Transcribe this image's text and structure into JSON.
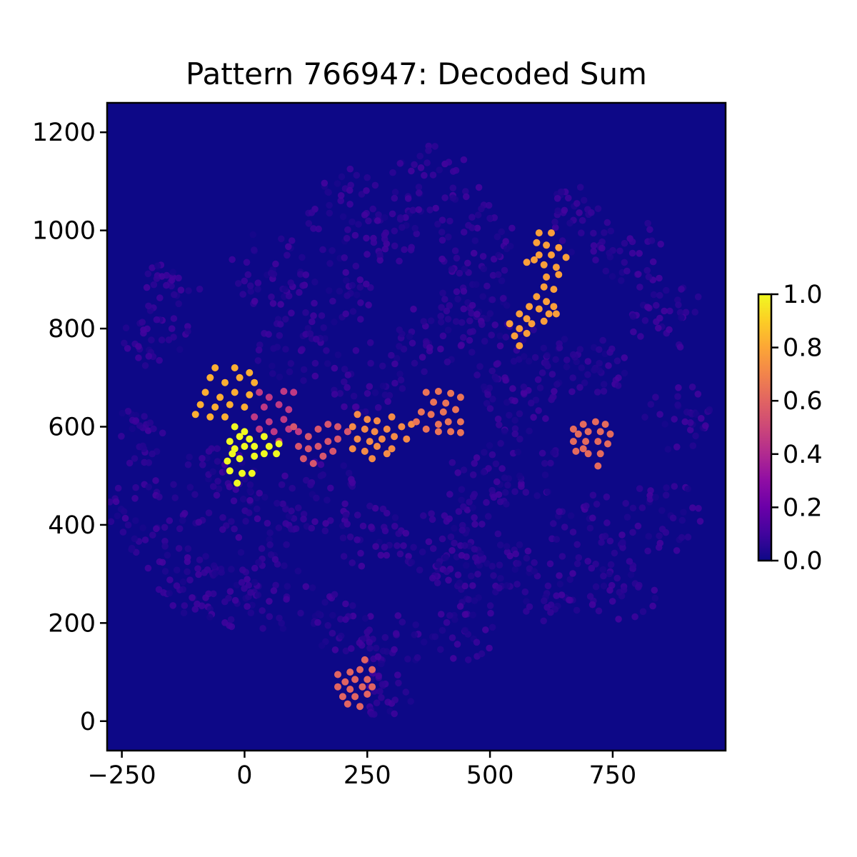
{
  "chart_data": {
    "type": "scatter",
    "title": "Pattern 766947: Decoded Sum",
    "xlabel": "",
    "ylabel": "",
    "xlim": [
      -280,
      980
    ],
    "ylim": [
      -60,
      1260
    ],
    "x_ticks": [
      -250,
      0,
      250,
      500,
      750
    ],
    "x_tick_labels": [
      "−250",
      "0",
      "250",
      "500",
      "750"
    ],
    "y_ticks": [
      0,
      200,
      400,
      600,
      800,
      1000,
      1200
    ],
    "y_tick_labels": [
      "0",
      "200",
      "400",
      "600",
      "800",
      "1000",
      "1200"
    ],
    "grid": false,
    "background_color": "#0d0887",
    "colormap": "plasma",
    "colorbar": {
      "range": [
        0,
        1
      ],
      "ticks": [
        0.0,
        0.2,
        0.4,
        0.6,
        0.8,
        1.0
      ],
      "tick_labels": [
        "0.0",
        "0.2",
        "0.4",
        "0.6",
        "0.8",
        "1.0"
      ]
    },
    "bright_points": [
      {
        "x": -60,
        "y": 720,
        "v": 0.82
      },
      {
        "x": -20,
        "y": 720,
        "v": 0.82
      },
      {
        "x": 10,
        "y": 710,
        "v": 0.82
      },
      {
        "x": -70,
        "y": 700,
        "v": 0.82
      },
      {
        "x": -40,
        "y": 690,
        "v": 0.82
      },
      {
        "x": -10,
        "y": 700,
        "v": 0.82
      },
      {
        "x": 20,
        "y": 690,
        "v": 0.82
      },
      {
        "x": -80,
        "y": 670,
        "v": 0.82
      },
      {
        "x": -50,
        "y": 660,
        "v": 0.82
      },
      {
        "x": -20,
        "y": 670,
        "v": 0.82
      },
      {
        "x": 10,
        "y": 665,
        "v": 0.82
      },
      {
        "x": -90,
        "y": 645,
        "v": 0.82
      },
      {
        "x": -60,
        "y": 640,
        "v": 0.82
      },
      {
        "x": -30,
        "y": 645,
        "v": 0.82
      },
      {
        "x": 0,
        "y": 640,
        "v": 0.82
      },
      {
        "x": -100,
        "y": 625,
        "v": 0.82
      },
      {
        "x": -70,
        "y": 620,
        "v": 0.82
      },
      {
        "x": -40,
        "y": 620,
        "v": 0.82
      },
      {
        "x": 30,
        "y": 670,
        "v": 0.45
      },
      {
        "x": 50,
        "y": 660,
        "v": 0.45
      },
      {
        "x": 80,
        "y": 672,
        "v": 0.45
      },
      {
        "x": 100,
        "y": 670,
        "v": 0.45
      },
      {
        "x": 40,
        "y": 640,
        "v": 0.45
      },
      {
        "x": 70,
        "y": 645,
        "v": 0.45
      },
      {
        "x": 90,
        "y": 635,
        "v": 0.45
      },
      {
        "x": 20,
        "y": 620,
        "v": 0.45
      },
      {
        "x": 50,
        "y": 610,
        "v": 0.45
      },
      {
        "x": 80,
        "y": 615,
        "v": 0.45
      },
      {
        "x": 30,
        "y": 595,
        "v": 0.45
      },
      {
        "x": 60,
        "y": 590,
        "v": 0.45
      },
      {
        "x": 90,
        "y": 595,
        "v": 0.45
      },
      {
        "x": 110,
        "y": 590,
        "v": 0.45
      },
      {
        "x": 70,
        "y": 570,
        "v": 0.45
      },
      {
        "x": -20,
        "y": 600,
        "v": 1.0
      },
      {
        "x": -10,
        "y": 580,
        "v": 1.0
      },
      {
        "x": 0,
        "y": 590,
        "v": 1.0
      },
      {
        "x": -30,
        "y": 570,
        "v": 1.0
      },
      {
        "x": 10,
        "y": 575,
        "v": 1.0
      },
      {
        "x": 40,
        "y": 580,
        "v": 1.0
      },
      {
        "x": -20,
        "y": 555,
        "v": 1.0
      },
      {
        "x": 0,
        "y": 560,
        "v": 1.0
      },
      {
        "x": 20,
        "y": 560,
        "v": 1.0
      },
      {
        "x": 50,
        "y": 560,
        "v": 1.0
      },
      {
        "x": 70,
        "y": 565,
        "v": 1.0
      },
      {
        "x": -35,
        "y": 530,
        "v": 1.0
      },
      {
        "x": -10,
        "y": 535,
        "v": 1.0
      },
      {
        "x": 20,
        "y": 540,
        "v": 1.0
      },
      {
        "x": 40,
        "y": 545,
        "v": 1.0
      },
      {
        "x": 65,
        "y": 545,
        "v": 1.0
      },
      {
        "x": -30,
        "y": 510,
        "v": 1.0
      },
      {
        "x": -5,
        "y": 505,
        "v": 1.0
      },
      {
        "x": 15,
        "y": 505,
        "v": 1.0
      },
      {
        "x": -15,
        "y": 485,
        "v": 1.0
      },
      {
        "x": -25,
        "y": 545,
        "v": 1.0
      },
      {
        "x": 110,
        "y": 560,
        "v": 0.55
      },
      {
        "x": 130,
        "y": 580,
        "v": 0.55
      },
      {
        "x": 150,
        "y": 595,
        "v": 0.55
      },
      {
        "x": 170,
        "y": 605,
        "v": 0.55
      },
      {
        "x": 190,
        "y": 600,
        "v": 0.55
      },
      {
        "x": 130,
        "y": 555,
        "v": 0.55
      },
      {
        "x": 150,
        "y": 560,
        "v": 0.55
      },
      {
        "x": 170,
        "y": 570,
        "v": 0.55
      },
      {
        "x": 190,
        "y": 575,
        "v": 0.55
      },
      {
        "x": 120,
        "y": 535,
        "v": 0.55
      },
      {
        "x": 140,
        "y": 525,
        "v": 0.55
      },
      {
        "x": 160,
        "y": 540,
        "v": 0.55
      },
      {
        "x": 180,
        "y": 550,
        "v": 0.55
      },
      {
        "x": 210,
        "y": 590,
        "v": 0.55
      },
      {
        "x": 100,
        "y": 600,
        "v": 0.55
      },
      {
        "x": 230,
        "y": 625,
        "v": 0.72
      },
      {
        "x": 250,
        "y": 615,
        "v": 0.72
      },
      {
        "x": 270,
        "y": 612,
        "v": 0.72
      },
      {
        "x": 300,
        "y": 620,
        "v": 0.72
      },
      {
        "x": 220,
        "y": 600,
        "v": 0.72
      },
      {
        "x": 245,
        "y": 595,
        "v": 0.72
      },
      {
        "x": 265,
        "y": 590,
        "v": 0.72
      },
      {
        "x": 290,
        "y": 595,
        "v": 0.72
      },
      {
        "x": 320,
        "y": 600,
        "v": 0.72
      },
      {
        "x": 340,
        "y": 605,
        "v": 0.72
      },
      {
        "x": 230,
        "y": 575,
        "v": 0.72
      },
      {
        "x": 255,
        "y": 570,
        "v": 0.72
      },
      {
        "x": 280,
        "y": 575,
        "v": 0.72
      },
      {
        "x": 305,
        "y": 580,
        "v": 0.72
      },
      {
        "x": 330,
        "y": 575,
        "v": 0.72
      },
      {
        "x": 220,
        "y": 555,
        "v": 0.72
      },
      {
        "x": 245,
        "y": 550,
        "v": 0.72
      },
      {
        "x": 270,
        "y": 560,
        "v": 0.72
      },
      {
        "x": 300,
        "y": 555,
        "v": 0.72
      },
      {
        "x": 260,
        "y": 535,
        "v": 0.72
      },
      {
        "x": 290,
        "y": 545,
        "v": 0.72
      },
      {
        "x": 370,
        "y": 670,
        "v": 0.65
      },
      {
        "x": 395,
        "y": 672,
        "v": 0.65
      },
      {
        "x": 420,
        "y": 668,
        "v": 0.65
      },
      {
        "x": 440,
        "y": 660,
        "v": 0.65
      },
      {
        "x": 385,
        "y": 650,
        "v": 0.65
      },
      {
        "x": 410,
        "y": 648,
        "v": 0.65
      },
      {
        "x": 360,
        "y": 630,
        "v": 0.65
      },
      {
        "x": 380,
        "y": 625,
        "v": 0.65
      },
      {
        "x": 405,
        "y": 630,
        "v": 0.65
      },
      {
        "x": 430,
        "y": 635,
        "v": 0.65
      },
      {
        "x": 440,
        "y": 610,
        "v": 0.65
      },
      {
        "x": 395,
        "y": 605,
        "v": 0.65
      },
      {
        "x": 415,
        "y": 610,
        "v": 0.65
      },
      {
        "x": 370,
        "y": 595,
        "v": 0.65
      },
      {
        "x": 395,
        "y": 590,
        "v": 0.65
      },
      {
        "x": 420,
        "y": 590,
        "v": 0.65
      },
      {
        "x": 440,
        "y": 588,
        "v": 0.65
      },
      {
        "x": 350,
        "y": 610,
        "v": 0.65
      },
      {
        "x": 600,
        "y": 995,
        "v": 0.78
      },
      {
        "x": 625,
        "y": 995,
        "v": 0.78
      },
      {
        "x": 595,
        "y": 975,
        "v": 0.78
      },
      {
        "x": 615,
        "y": 970,
        "v": 0.78
      },
      {
        "x": 640,
        "y": 965,
        "v": 0.78
      },
      {
        "x": 600,
        "y": 950,
        "v": 0.78
      },
      {
        "x": 625,
        "y": 950,
        "v": 0.78
      },
      {
        "x": 655,
        "y": 945,
        "v": 0.78
      },
      {
        "x": 575,
        "y": 935,
        "v": 0.78
      },
      {
        "x": 590,
        "y": 940,
        "v": 0.78
      },
      {
        "x": 610,
        "y": 930,
        "v": 0.78
      },
      {
        "x": 635,
        "y": 925,
        "v": 0.78
      },
      {
        "x": 615,
        "y": 905,
        "v": 0.78
      },
      {
        "x": 640,
        "y": 910,
        "v": 0.78
      },
      {
        "x": 610,
        "y": 885,
        "v": 0.78
      },
      {
        "x": 630,
        "y": 880,
        "v": 0.78
      },
      {
        "x": 595,
        "y": 865,
        "v": 0.78
      },
      {
        "x": 615,
        "y": 855,
        "v": 0.78
      },
      {
        "x": 580,
        "y": 845,
        "v": 0.78
      },
      {
        "x": 600,
        "y": 840,
        "v": 0.78
      },
      {
        "x": 630,
        "y": 845,
        "v": 0.78
      },
      {
        "x": 560,
        "y": 830,
        "v": 0.78
      },
      {
        "x": 575,
        "y": 820,
        "v": 0.78
      },
      {
        "x": 620,
        "y": 830,
        "v": 0.78
      },
      {
        "x": 540,
        "y": 810,
        "v": 0.78
      },
      {
        "x": 560,
        "y": 800,
        "v": 0.78
      },
      {
        "x": 585,
        "y": 810,
        "v": 0.78
      },
      {
        "x": 610,
        "y": 815,
        "v": 0.78
      },
      {
        "x": 550,
        "y": 785,
        "v": 0.78
      },
      {
        "x": 575,
        "y": 790,
        "v": 0.78
      },
      {
        "x": 560,
        "y": 765,
        "v": 0.78
      },
      {
        "x": 635,
        "y": 830,
        "v": 0.78
      },
      {
        "x": 670,
        "y": 595,
        "v": 0.62
      },
      {
        "x": 690,
        "y": 605,
        "v": 0.62
      },
      {
        "x": 715,
        "y": 610,
        "v": 0.62
      },
      {
        "x": 735,
        "y": 605,
        "v": 0.62
      },
      {
        "x": 680,
        "y": 585,
        "v": 0.62
      },
      {
        "x": 700,
        "y": 590,
        "v": 0.62
      },
      {
        "x": 725,
        "y": 590,
        "v": 0.62
      },
      {
        "x": 745,
        "y": 585,
        "v": 0.62
      },
      {
        "x": 670,
        "y": 570,
        "v": 0.62
      },
      {
        "x": 695,
        "y": 570,
        "v": 0.62
      },
      {
        "x": 720,
        "y": 570,
        "v": 0.62
      },
      {
        "x": 740,
        "y": 565,
        "v": 0.62
      },
      {
        "x": 675,
        "y": 550,
        "v": 0.62
      },
      {
        "x": 700,
        "y": 545,
        "v": 0.62
      },
      {
        "x": 725,
        "y": 545,
        "v": 0.62
      },
      {
        "x": 690,
        "y": 555,
        "v": 0.62
      },
      {
        "x": 720,
        "y": 520,
        "v": 0.62
      },
      {
        "x": 190,
        "y": 95,
        "v": 0.6
      },
      {
        "x": 215,
        "y": 100,
        "v": 0.6
      },
      {
        "x": 235,
        "y": 105,
        "v": 0.6
      },
      {
        "x": 260,
        "y": 105,
        "v": 0.6
      },
      {
        "x": 205,
        "y": 80,
        "v": 0.6
      },
      {
        "x": 225,
        "y": 85,
        "v": 0.6
      },
      {
        "x": 250,
        "y": 85,
        "v": 0.6
      },
      {
        "x": 190,
        "y": 70,
        "v": 0.6
      },
      {
        "x": 215,
        "y": 65,
        "v": 0.6
      },
      {
        "x": 240,
        "y": 70,
        "v": 0.6
      },
      {
        "x": 260,
        "y": 70,
        "v": 0.6
      },
      {
        "x": 200,
        "y": 50,
        "v": 0.6
      },
      {
        "x": 225,
        "y": 50,
        "v": 0.6
      },
      {
        "x": 250,
        "y": 55,
        "v": 0.6
      },
      {
        "x": 210,
        "y": 35,
        "v": 0.6
      },
      {
        "x": 235,
        "y": 30,
        "v": 0.6
      },
      {
        "x": 245,
        "y": 125,
        "v": 0.6
      }
    ]
  }
}
